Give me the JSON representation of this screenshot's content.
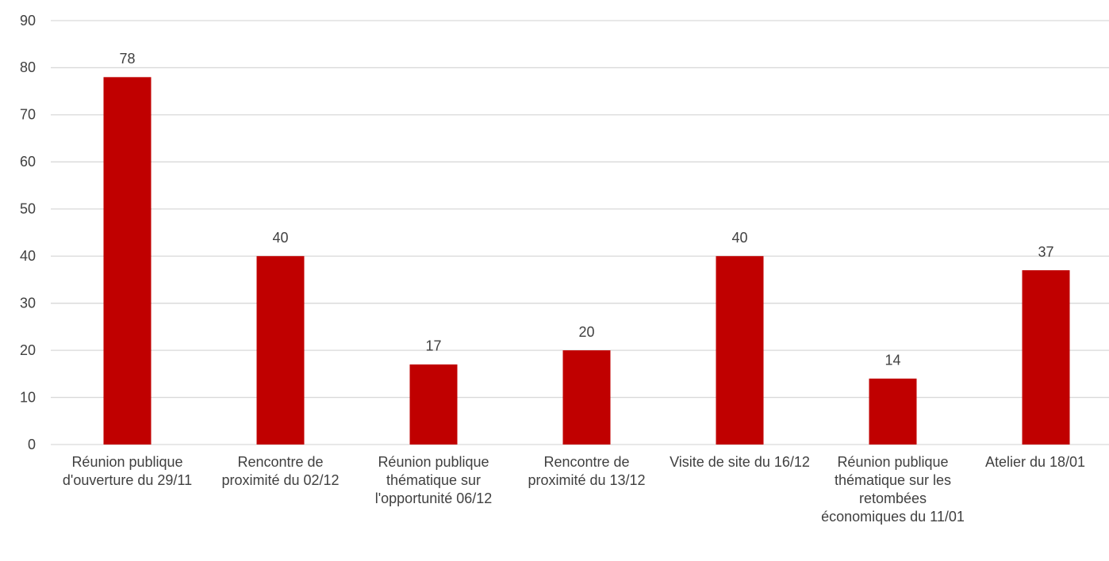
{
  "chart_data": {
    "type": "bar",
    "categories": [
      "Réunion publique d'ouverture du 29/11",
      "Rencontre de proximité du 02/12",
      "Réunion publique thématique sur l'opportunité 06/12",
      "Rencontre de proximité du 13/12",
      "Visite de site du 16/12",
      "Réunion publique thématique sur les retombées économiques du 11/01",
      "Atelier du 18/01"
    ],
    "values": [
      78,
      40,
      17,
      20,
      40,
      14,
      37
    ],
    "color": "#c00000",
    "ylim": [
      0,
      90
    ],
    "yticks": [
      0,
      10,
      20,
      30,
      40,
      50,
      60,
      70,
      80,
      90
    ],
    "grid": true
  }
}
